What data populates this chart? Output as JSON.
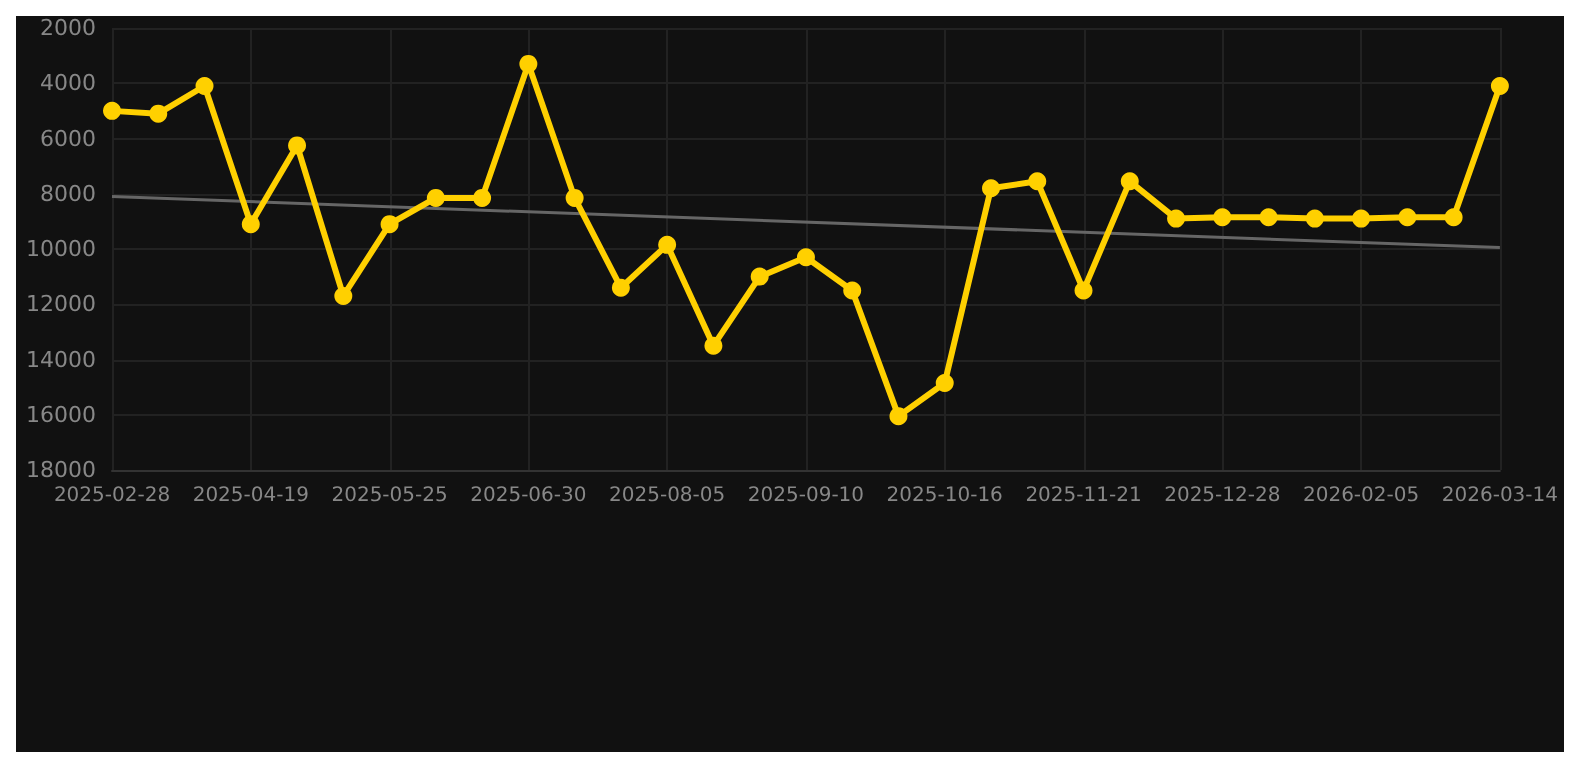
{
  "chart_data": {
    "type": "line",
    "categories": [
      "2025-02-28",
      null,
      null,
      "2025-04-19",
      null,
      null,
      "2025-05-25",
      null,
      null,
      "2025-06-30",
      null,
      null,
      "2025-08-05",
      null,
      null,
      "2025-09-10",
      null,
      null,
      "2025-10-16",
      null,
      null,
      "2025-11-21",
      null,
      null,
      "2025-12-28",
      null,
      null,
      "2026-02-05",
      null,
      null,
      "2026-03-14"
    ],
    "series": [
      {
        "color": "#ffd000",
        "values": [
          5000,
          5100,
          4100,
          9100,
          6250,
          11700,
          9100,
          8150,
          8150,
          3300,
          8150,
          11400,
          9850,
          13500,
          11000,
          10300,
          11500,
          16050,
          14850,
          7800,
          7550,
          11500,
          7550,
          8900,
          8850,
          8850,
          8900,
          8900,
          8850,
          8850,
          4100
        ]
      },
      {
        "type": "line",
        "marker": "none",
        "color": "#666666",
        "values": [
          8100,
          null,
          null,
          null,
          null,
          null,
          null,
          null,
          null,
          null,
          null,
          null,
          null,
          null,
          null,
          null,
          null,
          null,
          null,
          null,
          null,
          null,
          null,
          null,
          null,
          null,
          null,
          null,
          null,
          null,
          9950
        ]
      }
    ],
    "ylim": [
      18000,
      2000
    ],
    "yticks": [
      2000,
      4000,
      6000,
      8000,
      10000,
      12000,
      14000,
      16000,
      18000
    ],
    "grid": true,
    "marker": "circle",
    "line_style": "solid"
  }
}
